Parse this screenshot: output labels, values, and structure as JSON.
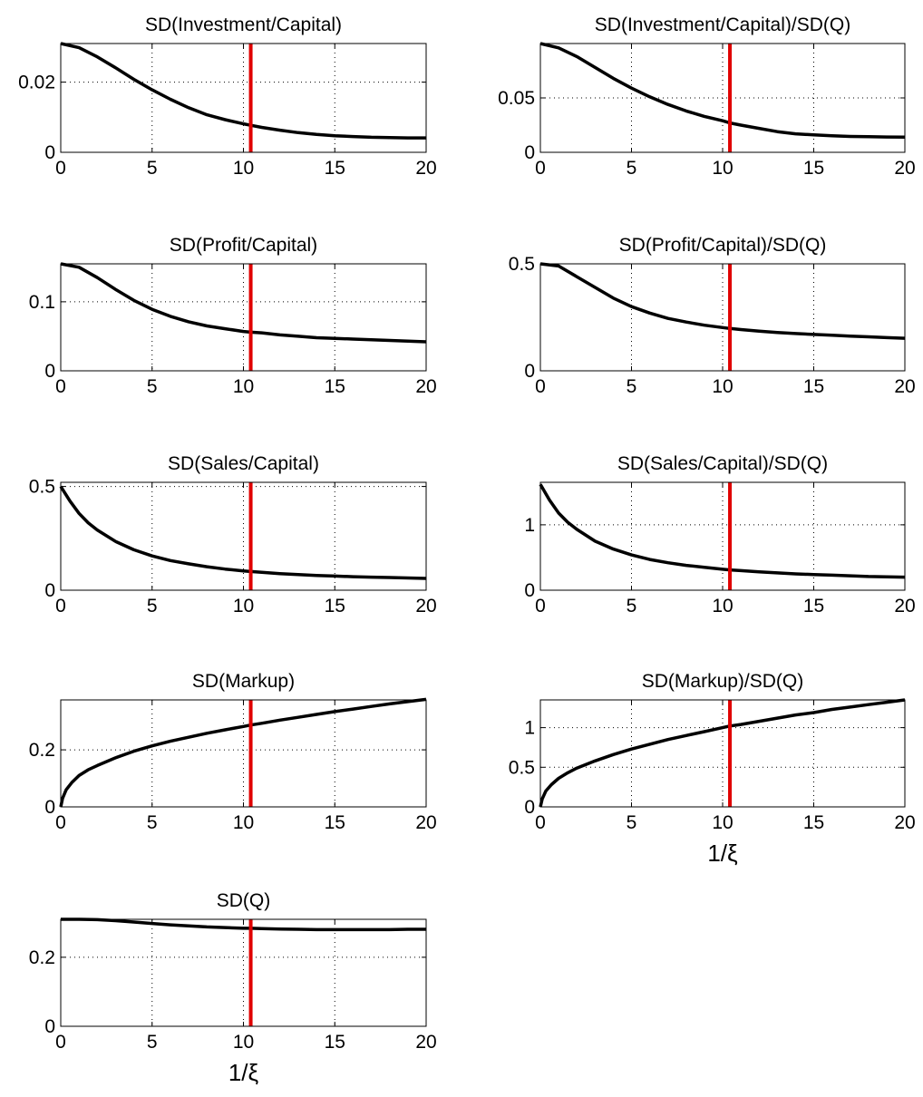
{
  "chart_data": [
    {
      "type": "line",
      "title": "SD(Investment/Capital)",
      "xlabel": "",
      "xlim": [
        0,
        20
      ],
      "ylim": [
        0,
        0.031
      ],
      "xticks": [
        0,
        5,
        10,
        15,
        20
      ],
      "yticks": [
        0,
        0.02
      ],
      "ytick_labels": [
        "0",
        "0.02"
      ],
      "grid": true,
      "x": [
        0,
        1,
        2,
        3,
        4,
        5,
        6,
        7,
        8,
        9,
        10,
        10.4,
        11,
        12,
        13,
        14,
        15,
        16,
        17,
        18,
        19,
        20
      ],
      "y": [
        0.031,
        0.0298,
        0.0272,
        0.0241,
        0.0208,
        0.0178,
        0.0151,
        0.0127,
        0.0107,
        0.0093,
        0.0081,
        0.0077,
        0.0071,
        0.0063,
        0.0056,
        0.0051,
        0.0047,
        0.0045,
        0.0043,
        0.0042,
        0.0041,
        0.0041
      ],
      "vline": 10.4
    },
    {
      "type": "line",
      "title": "SD(Investment/Capital)/SD(Q)",
      "xlabel": "",
      "xlim": [
        0,
        20
      ],
      "ylim": [
        0,
        0.1
      ],
      "xticks": [
        0,
        5,
        10,
        15,
        20
      ],
      "yticks": [
        0,
        0.05
      ],
      "ytick_labels": [
        "0",
        "0.05"
      ],
      "grid": true,
      "x": [
        0,
        1,
        2,
        3,
        4,
        5,
        6,
        7,
        8,
        9,
        10,
        10.4,
        11,
        12,
        13,
        14,
        15,
        16,
        17,
        18,
        19,
        20
      ],
      "y": [
        0.1,
        0.096,
        0.088,
        0.078,
        0.068,
        0.059,
        0.051,
        0.044,
        0.038,
        0.033,
        0.029,
        0.027,
        0.025,
        0.022,
        0.019,
        0.017,
        0.016,
        0.0152,
        0.0146,
        0.0143,
        0.0141,
        0.014
      ],
      "vline": 10.4
    },
    {
      "type": "line",
      "title": "SD(Profit/Capital)",
      "xlabel": "",
      "xlim": [
        0,
        20
      ],
      "ylim": [
        0,
        0.155
      ],
      "xticks": [
        0,
        5,
        10,
        15,
        20
      ],
      "yticks": [
        0,
        0.1
      ],
      "ytick_labels": [
        "0",
        "0.1"
      ],
      "grid": true,
      "x": [
        0,
        1,
        2,
        3,
        4,
        5,
        6,
        7,
        8,
        9,
        10,
        10.4,
        11,
        12,
        13,
        14,
        15,
        16,
        17,
        18,
        19,
        20
      ],
      "y": [
        0.155,
        0.15,
        0.135,
        0.118,
        0.102,
        0.089,
        0.079,
        0.071,
        0.065,
        0.061,
        0.057,
        0.056,
        0.055,
        0.052,
        0.05,
        0.048,
        0.047,
        0.046,
        0.045,
        0.044,
        0.043,
        0.042
      ],
      "vline": 10.4
    },
    {
      "type": "line",
      "title": "SD(Profit/Capital)/SD(Q)",
      "xlabel": "",
      "xlim": [
        0,
        20
      ],
      "ylim": [
        0,
        0.5
      ],
      "xticks": [
        0,
        5,
        10,
        15,
        20
      ],
      "yticks": [
        0,
        0.5
      ],
      "ytick_labels": [
        "0",
        "0.5"
      ],
      "grid": true,
      "x": [
        0,
        1,
        2,
        3,
        4,
        5,
        6,
        7,
        8,
        9,
        10,
        10.4,
        11,
        12,
        13,
        14,
        15,
        16,
        17,
        18,
        19,
        20
      ],
      "y": [
        0.5,
        0.49,
        0.44,
        0.39,
        0.34,
        0.3,
        0.27,
        0.245,
        0.228,
        0.213,
        0.202,
        0.198,
        0.193,
        0.185,
        0.179,
        0.174,
        0.17,
        0.166,
        0.162,
        0.159,
        0.155,
        0.152
      ],
      "vline": 10.4
    },
    {
      "type": "line",
      "title": "SD(Sales/Capital)",
      "xlabel": "",
      "xlim": [
        0,
        20
      ],
      "ylim": [
        0,
        0.52
      ],
      "xticks": [
        0,
        5,
        10,
        15,
        20
      ],
      "yticks": [
        0,
        0.5
      ],
      "ytick_labels": [
        "0",
        "0.5"
      ],
      "grid": true,
      "x": [
        0,
        0.5,
        1,
        1.5,
        2,
        3,
        4,
        5,
        6,
        7,
        8,
        9,
        10,
        10.4,
        11,
        12,
        13,
        14,
        15,
        16,
        17,
        18,
        19,
        20
      ],
      "y": [
        0.5,
        0.43,
        0.37,
        0.325,
        0.29,
        0.235,
        0.195,
        0.165,
        0.143,
        0.127,
        0.113,
        0.102,
        0.093,
        0.09,
        0.086,
        0.08,
        0.075,
        0.071,
        0.068,
        0.065,
        0.063,
        0.061,
        0.059,
        0.057
      ],
      "vline": 10.4
    },
    {
      "type": "line",
      "title": "SD(Sales/Capital)/SD(Q)",
      "xlabel": "",
      "xlim": [
        0,
        20
      ],
      "ylim": [
        0,
        1.65
      ],
      "xticks": [
        0,
        5,
        10,
        15,
        20
      ],
      "yticks": [
        0,
        1
      ],
      "ytick_labels": [
        "0",
        "1"
      ],
      "grid": true,
      "x": [
        0,
        0.5,
        1,
        1.5,
        2,
        3,
        4,
        5,
        6,
        7,
        8,
        9,
        10,
        10.4,
        11,
        12,
        13,
        14,
        15,
        16,
        17,
        18,
        19,
        20
      ],
      "y": [
        1.62,
        1.38,
        1.18,
        1.04,
        0.93,
        0.75,
        0.63,
        0.54,
        0.47,
        0.42,
        0.38,
        0.35,
        0.32,
        0.31,
        0.3,
        0.28,
        0.265,
        0.25,
        0.24,
        0.23,
        0.22,
        0.21,
        0.205,
        0.2
      ],
      "vline": 10.4
    },
    {
      "type": "line",
      "title": "SD(Markup)",
      "xlabel": "",
      "xlim": [
        0,
        20
      ],
      "ylim": [
        0,
        0.375
      ],
      "xticks": [
        0,
        5,
        10,
        15,
        20
      ],
      "yticks": [
        0,
        0.2
      ],
      "ytick_labels": [
        "0",
        "0.2"
      ],
      "grid": true,
      "x": [
        0,
        0.1,
        0.3,
        0.6,
        1,
        1.5,
        2,
        3,
        4,
        5,
        6,
        7,
        8,
        9,
        10,
        10.4,
        11,
        12,
        13,
        14,
        15,
        16,
        17,
        18,
        19,
        20
      ],
      "y": [
        0,
        0.03,
        0.06,
        0.085,
        0.11,
        0.13,
        0.145,
        0.172,
        0.195,
        0.214,
        0.23,
        0.244,
        0.258,
        0.27,
        0.282,
        0.287,
        0.293,
        0.304,
        0.314,
        0.324,
        0.334,
        0.343,
        0.352,
        0.361,
        0.369,
        0.377
      ],
      "vline": 10.4
    },
    {
      "type": "line",
      "title": "SD(Markup)/SD(Q)",
      "xlabel": "1/ξ",
      "xlim": [
        0,
        20
      ],
      "ylim": [
        0,
        1.35
      ],
      "xticks": [
        0,
        5,
        10,
        15,
        20
      ],
      "yticks": [
        0,
        0.5,
        1
      ],
      "ytick_labels": [
        "0",
        "0.5",
        "1"
      ],
      "grid": true,
      "x": [
        0,
        0.1,
        0.3,
        0.6,
        1,
        1.5,
        2,
        3,
        4,
        5,
        6,
        7,
        8,
        9,
        10,
        10.4,
        11,
        12,
        13,
        14,
        15,
        16,
        17,
        18,
        19,
        20
      ],
      "y": [
        0,
        0.1,
        0.2,
        0.28,
        0.36,
        0.43,
        0.49,
        0.58,
        0.66,
        0.73,
        0.79,
        0.85,
        0.9,
        0.95,
        1.0,
        1.02,
        1.04,
        1.08,
        1.12,
        1.16,
        1.19,
        1.23,
        1.26,
        1.29,
        1.32,
        1.35
      ],
      "vline": 10.4
    },
    {
      "type": "line",
      "title": "SD(Q)",
      "xlabel": "1/ξ",
      "xlim": [
        0,
        20
      ],
      "ylim": [
        0,
        0.31
      ],
      "xticks": [
        0,
        5,
        10,
        15,
        20
      ],
      "yticks": [
        0,
        0.2
      ],
      "ytick_labels": [
        "0",
        "0.2"
      ],
      "grid": true,
      "x": [
        0,
        1,
        2,
        3,
        4,
        5,
        6,
        7,
        8,
        9,
        10,
        10.4,
        11,
        12,
        13,
        14,
        15,
        16,
        17,
        18,
        19,
        20
      ],
      "y": [
        0.31,
        0.31,
        0.309,
        0.306,
        0.302,
        0.298,
        0.294,
        0.291,
        0.288,
        0.286,
        0.284,
        0.284,
        0.283,
        0.282,
        0.281,
        0.28,
        0.28,
        0.28,
        0.28,
        0.28,
        0.281,
        0.281
      ],
      "vline": 10.4
    }
  ],
  "colors": {
    "curve": "#000000",
    "marker": "#e00000"
  }
}
